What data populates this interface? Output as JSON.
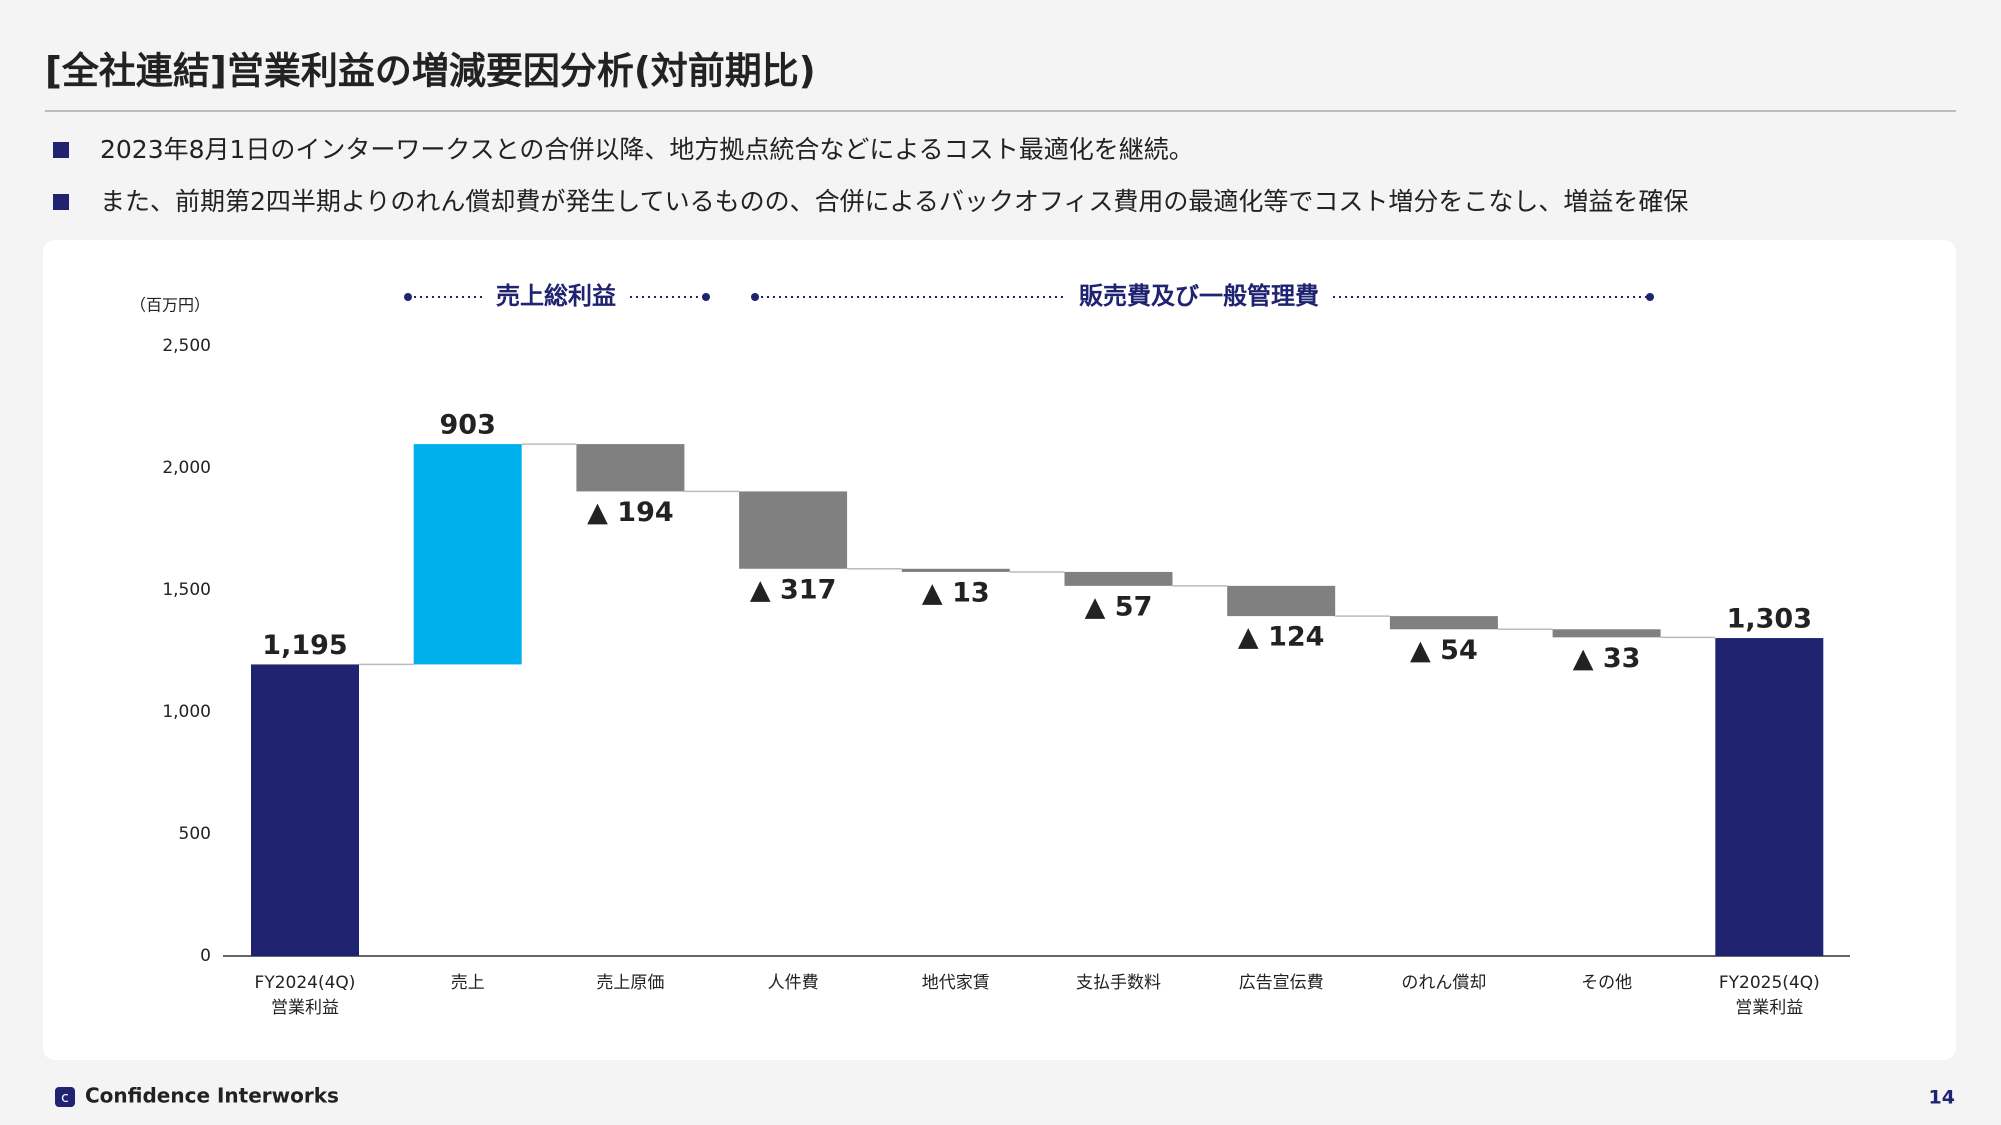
{
  "header": {
    "title": "[全社連結]営業利益の増減要因分析(対前期比)"
  },
  "bullets": [
    "2023年8月1日のインターワークスとの合併以降、地方拠点統合などによるコスト最適化を継続。",
    "また、前期第2四半期よりのれん償却費が発生しているものの、合併によるバックオフィス費用の最適化等でコスト増分をこなし、増益を確保"
  ],
  "chart_data": {
    "type": "waterfall",
    "unit_label": "（百万円）",
    "groups": [
      "売上総利益",
      "販売費及び一般管理費"
    ],
    "categories": [
      "FY2024(4Q)\n営業利益",
      "売上",
      "売上原価",
      "人件費",
      "地代家賃",
      "支払手数料",
      "広告宣伝費",
      "のれん償却",
      "その他",
      "FY2025(4Q)\n営業利益"
    ],
    "measures": [
      "total",
      "relative",
      "relative",
      "relative",
      "relative",
      "relative",
      "relative",
      "relative",
      "relative",
      "total"
    ],
    "values": [
      1195,
      903,
      -194,
      -317,
      -13,
      -57,
      -124,
      -54,
      -33,
      1303
    ],
    "value_labels": [
      "1,195",
      "903",
      "▲ 194",
      "▲ 317",
      "▲ 13",
      "▲ 57",
      "▲ 124",
      "▲ 54",
      "▲ 33",
      "1,303"
    ],
    "colors": {
      "total": "#1f2370",
      "increase": "#00b0ec",
      "decrease": "#808080"
    },
    "ylim": [
      0,
      2500
    ],
    "yticks": [
      0,
      500,
      {
        "value": 1000,
        "label": "1,000"
      },
      {
        "value": 1500,
        "label": "1,500"
      },
      {
        "value": 2000,
        "label": "2,000"
      },
      {
        "value": 2500,
        "label": "2,500"
      }
    ]
  },
  "footer": {
    "company": "Confidence Interworks",
    "page": "14"
  }
}
